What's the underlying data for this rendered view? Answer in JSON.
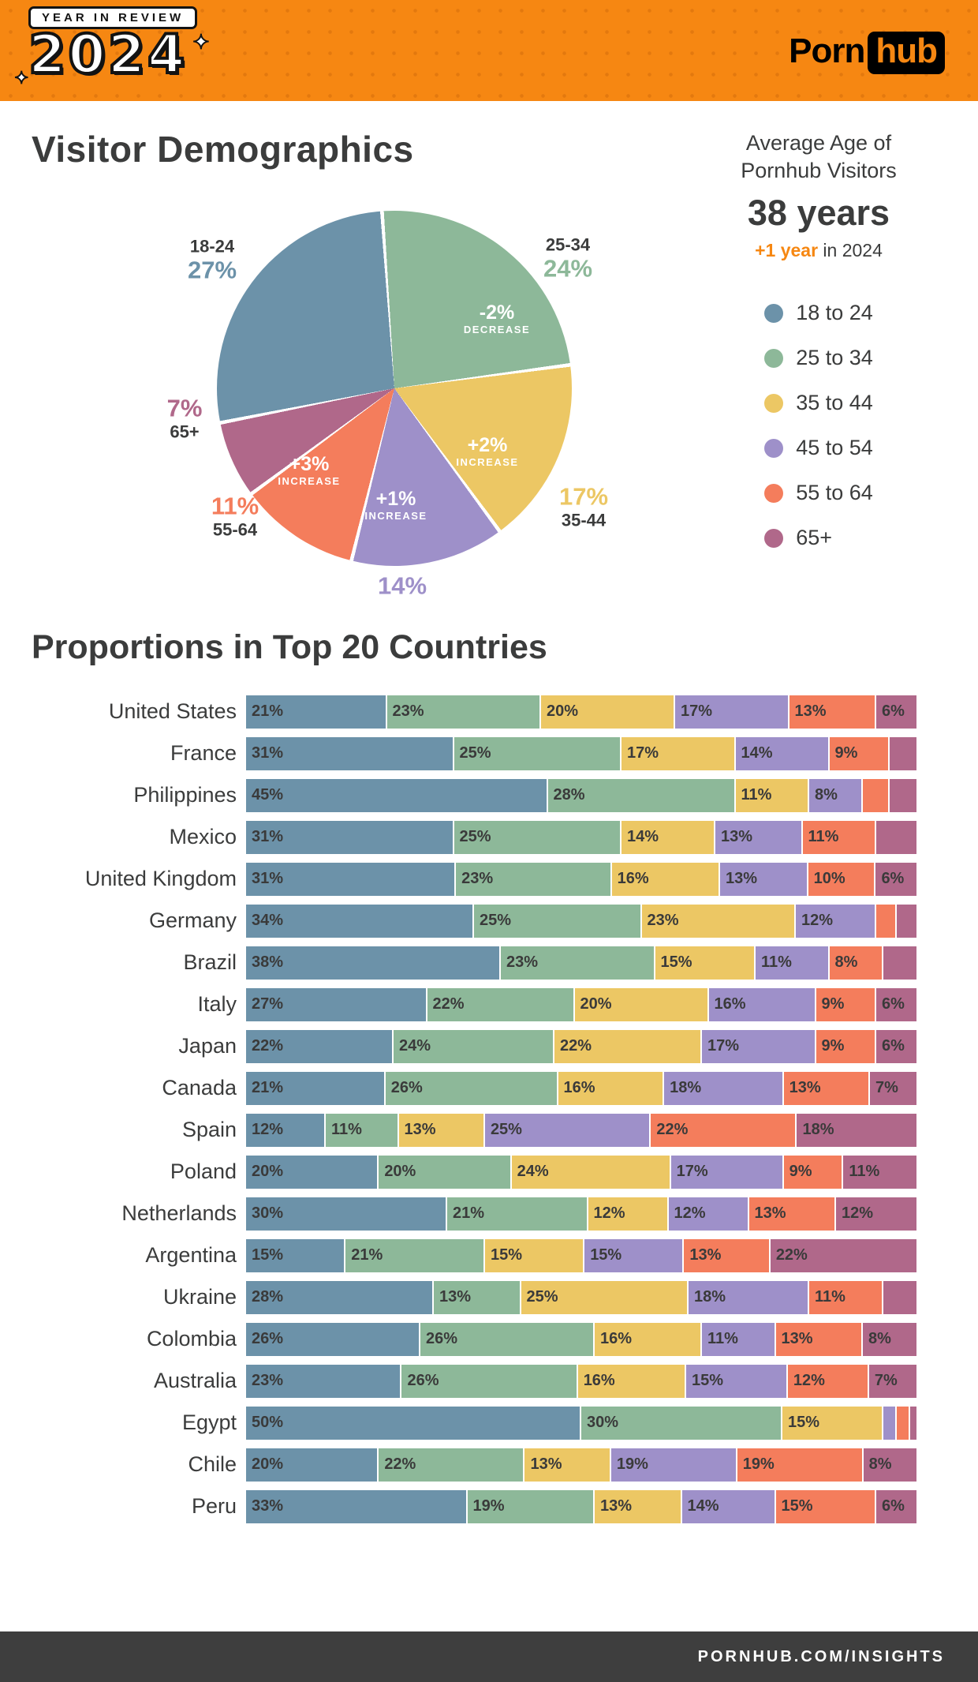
{
  "colors": [
    "#6c92a9",
    "#8db899",
    "#ecc764",
    "#9e90c9",
    "#f47d5c",
    "#b0688a"
  ],
  "accent_orange": "#f68712",
  "text_dark": "#3b3c3c",
  "header": {
    "badge": "YEAR IN REVIEW",
    "year": "2024",
    "brand_porn": "Porn",
    "brand_hub": "hub"
  },
  "demographics": {
    "title": "Visitor Demographics",
    "average_age": {
      "label_line1": "Average Age of",
      "label_line2": "Pornhub Visitors",
      "value": "38 years",
      "change_highlight": "+1 year",
      "change_rest": " in 2024"
    },
    "legend": [
      {
        "label": "18 to 24",
        "color": "#6c92a9"
      },
      {
        "label": "25 to 34",
        "color": "#8db899"
      },
      {
        "label": "35 to 44",
        "color": "#ecc764"
      },
      {
        "label": "45 to 54",
        "color": "#9e90c9"
      },
      {
        "label": "55 to 64",
        "color": "#f47d5c"
      },
      {
        "label": "65+",
        "color": "#b0688a"
      }
    ],
    "pie_callouts": {
      "g18_24": {
        "range": "18-24",
        "pct": "27%"
      },
      "g25_34": {
        "range": "25-34",
        "pct": "24%"
      },
      "g35_44": {
        "range": "35-44",
        "pct": "17%"
      },
      "g45_54": {
        "pct": "14%"
      },
      "g55_64": {
        "range": "55-64",
        "pct": "11%"
      },
      "g65plus": {
        "range": "65+",
        "pct": "7%"
      }
    },
    "pie_inner_labels": {
      "green": {
        "value": "-2%",
        "word": "DECREASE"
      },
      "yellow": {
        "value": "+2%",
        "word": "INCREASE"
      },
      "purple": {
        "value": "+1%",
        "word": "INCREASE"
      },
      "salmon": {
        "value": "+3%",
        "word": "INCREASE"
      }
    }
  },
  "countries": {
    "title": "Proportions in Top 20 Countries",
    "rows": [
      {
        "country": "United States",
        "values": [
          21,
          23,
          20,
          17,
          13,
          6
        ],
        "labels": [
          "21%",
          "23%",
          "20%",
          "17%",
          "13%",
          "6%"
        ]
      },
      {
        "country": "France",
        "values": [
          31,
          25,
          17,
          14,
          9,
          4
        ],
        "labels": [
          "31%",
          "25%",
          "17%",
          "14%",
          "9%",
          ""
        ]
      },
      {
        "country": "Philippines",
        "values": [
          45,
          28,
          11,
          8,
          4,
          4
        ],
        "labels": [
          "45%",
          "28%",
          "11%",
          "8%",
          "",
          ""
        ]
      },
      {
        "country": "Mexico",
        "values": [
          31,
          25,
          14,
          13,
          11,
          6
        ],
        "labels": [
          "31%",
          "25%",
          "14%",
          "13%",
          "11%",
          ""
        ]
      },
      {
        "country": "United Kingdom",
        "values": [
          31,
          23,
          16,
          13,
          10,
          6
        ],
        "labels": [
          "31%",
          "23%",
          "16%",
          "13%",
          "10%",
          "6%"
        ]
      },
      {
        "country": "Germany",
        "values": [
          34,
          25,
          23,
          12,
          3,
          3
        ],
        "labels": [
          "34%",
          "25%",
          "23%",
          "12%",
          "",
          ""
        ]
      },
      {
        "country": "Brazil",
        "values": [
          38,
          23,
          15,
          11,
          8,
          5
        ],
        "labels": [
          "38%",
          "23%",
          "15%",
          "11%",
          "8%",
          ""
        ]
      },
      {
        "country": "Italy",
        "values": [
          27,
          22,
          20,
          16,
          9,
          6
        ],
        "labels": [
          "27%",
          "22%",
          "20%",
          "16%",
          "9%",
          "6%"
        ]
      },
      {
        "country": "Japan",
        "values": [
          22,
          24,
          22,
          17,
          9,
          6
        ],
        "labels": [
          "22%",
          "24%",
          "22%",
          "17%",
          "9%",
          "6%"
        ]
      },
      {
        "country": "Canada",
        "values": [
          21,
          26,
          16,
          18,
          13,
          7
        ],
        "labels": [
          "21%",
          "26%",
          "16%",
          "18%",
          "13%",
          "7%"
        ]
      },
      {
        "country": "Spain",
        "values": [
          12,
          11,
          13,
          25,
          22,
          18
        ],
        "labels": [
          "12%",
          "11%",
          "13%",
          "25%",
          "22%",
          "18%"
        ]
      },
      {
        "country": "Poland",
        "values": [
          20,
          20,
          24,
          17,
          9,
          11
        ],
        "labels": [
          "20%",
          "20%",
          "24%",
          "17%",
          "9%",
          "11%"
        ]
      },
      {
        "country": "Netherlands",
        "values": [
          30,
          21,
          12,
          12,
          13,
          12
        ],
        "labels": [
          "30%",
          "21%",
          "12%",
          "12%",
          "13%",
          "12%"
        ]
      },
      {
        "country": "Argentina",
        "values": [
          15,
          21,
          15,
          15,
          13,
          22
        ],
        "labels": [
          "15%",
          "21%",
          "15%",
          "15%",
          "13%",
          "22%"
        ]
      },
      {
        "country": "Ukraine",
        "values": [
          28,
          13,
          25,
          18,
          11,
          5
        ],
        "labels": [
          "28%",
          "13%",
          "25%",
          "18%",
          "11%",
          ""
        ]
      },
      {
        "country": "Colombia",
        "values": [
          26,
          26,
          16,
          11,
          13,
          8
        ],
        "labels": [
          "26%",
          "26%",
          "16%",
          "11%",
          "13%",
          "8%"
        ]
      },
      {
        "country": "Australia",
        "values": [
          23,
          26,
          16,
          15,
          12,
          7
        ],
        "labels": [
          "23%",
          "26%",
          "16%",
          "15%",
          "12%",
          "7%"
        ]
      },
      {
        "country": "Egypt",
        "values": [
          50,
          30,
          15,
          2,
          2,
          1
        ],
        "labels": [
          "50%",
          "30%",
          "15%",
          "",
          "",
          ""
        ]
      },
      {
        "country": "Chile",
        "values": [
          20,
          22,
          13,
          19,
          19,
          8
        ],
        "labels": [
          "20%",
          "22%",
          "13%",
          "19%",
          "19%",
          "8%"
        ]
      },
      {
        "country": "Peru",
        "values": [
          33,
          19,
          13,
          14,
          15,
          6
        ],
        "labels": [
          "33%",
          "19%",
          "13%",
          "14%",
          "15%",
          "6%"
        ]
      }
    ]
  },
  "footer": {
    "text": "PORNHUB.COM/INSIGHTS"
  },
  "chart_data": [
    {
      "type": "pie",
      "title": "Visitor Demographics",
      "categories": [
        "18-24",
        "25-34",
        "35-44",
        "45-54",
        "55-64",
        "65+"
      ],
      "values": [
        27,
        24,
        17,
        14,
        11,
        7
      ],
      "unit": "%",
      "change_annotations": [
        "",
        "-2% DECREASE",
        "+2% INCREASE",
        "+1% INCREASE",
        "+3% INCREASE",
        ""
      ],
      "colors": [
        "#6c92a9",
        "#8db899",
        "#ecc764",
        "#9e90c9",
        "#f47d5c",
        "#b0688a"
      ],
      "legend_position": "right",
      "legend_labels": [
        "18 to 24",
        "25 to 34",
        "35 to 44",
        "45 to 54",
        "55 to 64",
        "65+"
      ]
    },
    {
      "type": "bar",
      "subtype": "stacked-horizontal",
      "title": "Proportions in Top 20 Countries",
      "unit": "%",
      "categories": [
        "United States",
        "France",
        "Philippines",
        "Mexico",
        "United Kingdom",
        "Germany",
        "Brazil",
        "Italy",
        "Japan",
        "Canada",
        "Spain",
        "Poland",
        "Netherlands",
        "Argentina",
        "Ukraine",
        "Colombia",
        "Australia",
        "Egypt",
        "Chile",
        "Peru"
      ],
      "series": [
        {
          "name": "18 to 24",
          "values": [
            21,
            31,
            45,
            31,
            31,
            34,
            38,
            27,
            22,
            21,
            12,
            20,
            30,
            15,
            28,
            26,
            23,
            50,
            20,
            33
          ]
        },
        {
          "name": "25 to 34",
          "values": [
            23,
            25,
            28,
            25,
            23,
            25,
            23,
            22,
            24,
            26,
            11,
            20,
            21,
            21,
            13,
            26,
            26,
            30,
            22,
            19
          ]
        },
        {
          "name": "35 to 44",
          "values": [
            20,
            17,
            11,
            14,
            16,
            23,
            15,
            20,
            22,
            16,
            13,
            24,
            12,
            15,
            25,
            16,
            16,
            15,
            13,
            13
          ]
        },
        {
          "name": "45 to 54",
          "values": [
            17,
            14,
            8,
            13,
            13,
            12,
            11,
            16,
            17,
            18,
            25,
            17,
            12,
            15,
            18,
            11,
            15,
            2,
            19,
            14
          ]
        },
        {
          "name": "55 to 64",
          "values": [
            13,
            9,
            4,
            11,
            10,
            3,
            8,
            9,
            9,
            13,
            22,
            9,
            13,
            13,
            11,
            13,
            12,
            2,
            19,
            15
          ]
        },
        {
          "name": "65+",
          "values": [
            6,
            4,
            4,
            6,
            6,
            3,
            5,
            6,
            6,
            7,
            18,
            11,
            12,
            22,
            5,
            8,
            7,
            1,
            8,
            6
          ]
        }
      ],
      "xlim": [
        0,
        100
      ],
      "grid": false,
      "colors": [
        "#6c92a9",
        "#8db899",
        "#ecc764",
        "#9e90c9",
        "#f47d5c",
        "#b0688a"
      ]
    }
  ]
}
